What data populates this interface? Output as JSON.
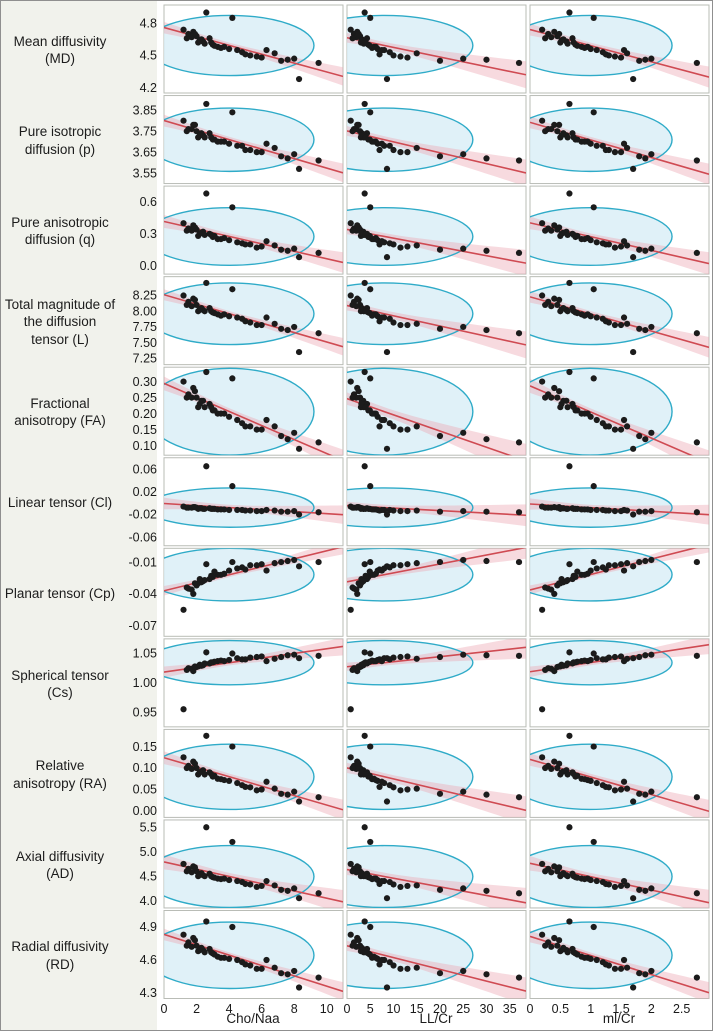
{
  "chart_data": {
    "type": "scatter",
    "description": "11x3 scatter-plot matrix of diffusion metrics vs MR spectroscopy ratios, each panel with red linear fit, pink confidence band and blue data ellipse",
    "style": {
      "point_color": "#1b1b1b",
      "line_color": "#cf4a52",
      "band_color": "#eba8b2",
      "ellipse_stroke": "#2fabc8",
      "ellipse_fill": "#d8edf6",
      "panel_border": "#b9bcb6",
      "background": "#f1f2ec"
    },
    "columns": [
      {
        "label": "Cho/Naa",
        "range": [
          0,
          11
        ],
        "ticks": [
          "0",
          "2",
          "4",
          "6",
          "8",
          "10"
        ],
        "x": [
          2.1,
          4.5,
          1.5,
          6.0,
          2.8,
          3.3,
          1.8,
          5.3,
          2.4,
          7.2,
          2.0,
          4.0,
          1.2,
          6.8,
          3.0,
          8.0,
          2.3,
          2.6,
          3.7,
          9.5,
          1.7,
          4.8,
          2.5,
          5.7,
          1.9,
          3.5,
          2.2,
          7.6,
          3.1,
          8.3,
          1.4,
          5.0,
          2.9,
          4.2,
          6.3
        ]
      },
      {
        "label": "LL/Cr",
        "range": [
          0,
          38.5
        ],
        "ticks": [
          "0",
          "5",
          "10",
          "15",
          "20",
          "25",
          "30",
          "35"
        ],
        "x": [
          3.0,
          8.0,
          1.5,
          13.0,
          4.3,
          5.8,
          2.2,
          10.0,
          3.5,
          20.0,
          2.8,
          6.6,
          0.8,
          15.0,
          4.6,
          25.0,
          3.2,
          3.8,
          6.2,
          37.0,
          2.0,
          9.2,
          3.6,
          11.5,
          2.5,
          5.4,
          3.1,
          30.0,
          4.9,
          8.6,
          1.2,
          7.0,
          4.0,
          5.0,
          7.5
        ]
      },
      {
        "label": "ml/Cr",
        "range": [
          0,
          2.95
        ],
        "ticks": [
          "0",
          "0.5",
          "1",
          "1.5",
          "2",
          "2.5"
        ],
        "x": [
          0.5,
          1.1,
          0.3,
          1.5,
          0.7,
          0.85,
          0.4,
          1.3,
          0.6,
          1.8,
          0.45,
          1.0,
          0.2,
          1.6,
          0.75,
          2.0,
          0.55,
          0.65,
          0.95,
          2.75,
          0.35,
          1.2,
          0.62,
          1.4,
          0.48,
          0.9,
          0.52,
          1.9,
          0.78,
          1.7,
          0.25,
          1.25,
          0.72,
          1.05,
          1.55
        ]
      }
    ],
    "rows": [
      {
        "label": "Mean diffusivity (MD)",
        "range": [
          4.15,
          4.97
        ],
        "ticks": [
          "4.2",
          "4.5",
          "4.8"
        ],
        "y": [
          4.62,
          4.55,
          4.7,
          4.48,
          4.66,
          4.58,
          4.72,
          4.5,
          4.63,
          4.45,
          4.68,
          4.56,
          4.74,
          4.52,
          4.6,
          4.47,
          4.65,
          4.9,
          4.58,
          4.43,
          4.67,
          4.53,
          4.61,
          4.49,
          4.7,
          4.57,
          4.64,
          4.46,
          4.59,
          4.28,
          4.66,
          4.51,
          4.62,
          4.85,
          4.55
        ]
      },
      {
        "label": "Pure isotropic diffusion (p)",
        "range": [
          3.5,
          3.92
        ],
        "ticks": [
          "3.55",
          "3.65",
          "3.75",
          "3.85"
        ],
        "y": [
          3.72,
          3.68,
          3.76,
          3.65,
          3.74,
          3.7,
          3.78,
          3.66,
          3.73,
          3.63,
          3.75,
          3.69,
          3.8,
          3.67,
          3.71,
          3.64,
          3.74,
          3.88,
          3.7,
          3.61,
          3.76,
          3.68,
          3.72,
          3.65,
          3.78,
          3.7,
          3.73,
          3.62,
          3.71,
          3.57,
          3.75,
          3.66,
          3.72,
          3.84,
          3.69
        ]
      },
      {
        "label": "Pure anisotropic diffusion (q)",
        "range": [
          -0.08,
          0.75
        ],
        "ticks": [
          "0.0",
          "0.3",
          "0.6"
        ],
        "y": [
          0.28,
          0.22,
          0.35,
          0.18,
          0.3,
          0.25,
          0.38,
          0.2,
          0.32,
          0.15,
          0.34,
          0.24,
          0.4,
          0.19,
          0.27,
          0.16,
          0.31,
          0.68,
          0.26,
          0.12,
          0.33,
          0.21,
          0.29,
          0.17,
          0.36,
          0.25,
          0.3,
          0.14,
          0.28,
          0.08,
          0.33,
          0.2,
          0.29,
          0.55,
          0.23
        ]
      },
      {
        "label": "Total magnitude of the diffusion tensor (L)",
        "range": [
          7.15,
          8.55
        ],
        "ticks": [
          "7.25",
          "7.50",
          "7.75",
          "8.00",
          "8.25"
        ],
        "y": [
          8.0,
          7.9,
          8.15,
          7.78,
          8.05,
          7.95,
          8.2,
          7.82,
          8.02,
          7.72,
          8.1,
          7.92,
          8.25,
          7.8,
          7.98,
          7.75,
          8.05,
          8.45,
          7.95,
          7.65,
          8.08,
          7.88,
          8.0,
          7.78,
          8.18,
          7.93,
          8.03,
          7.7,
          7.97,
          7.35,
          8.1,
          7.84,
          8.0,
          8.35,
          7.9
        ]
      },
      {
        "label": "Fractional anisotropy (FA)",
        "range": [
          0.07,
          0.345
        ],
        "ticks": [
          "0.10",
          "0.15",
          "0.20",
          "0.25",
          "0.30"
        ],
        "y": [
          0.22,
          0.18,
          0.26,
          0.15,
          0.23,
          0.2,
          0.28,
          0.16,
          0.24,
          0.13,
          0.25,
          0.19,
          0.3,
          0.16,
          0.21,
          0.14,
          0.24,
          0.33,
          0.2,
          0.11,
          0.25,
          0.17,
          0.22,
          0.15,
          0.27,
          0.2,
          0.23,
          0.12,
          0.21,
          0.09,
          0.25,
          0.16,
          0.22,
          0.31,
          0.18
        ]
      },
      {
        "label": "Linear tensor (Cl)",
        "range": [
          -0.075,
          0.08
        ],
        "ticks": [
          "-0.06",
          "-0.02",
          "0.02",
          "0.06"
        ],
        "y": [
          -0.01,
          -0.012,
          -0.008,
          -0.014,
          -0.009,
          -0.011,
          -0.007,
          -0.013,
          -0.01,
          -0.015,
          -0.008,
          -0.012,
          -0.006,
          -0.013,
          -0.01,
          -0.014,
          -0.009,
          0.065,
          -0.011,
          -0.016,
          -0.008,
          -0.012,
          -0.01,
          -0.014,
          -0.007,
          -0.011,
          -0.009,
          -0.015,
          -0.01,
          -0.02,
          -0.008,
          -0.013,
          -0.01,
          0.03,
          -0.012
        ]
      },
      {
        "label": "Planar tensor (Cp)",
        "range": [
          -0.08,
          0.003
        ],
        "ticks": [
          "-0.07",
          "-0.04",
          "-0.01"
        ],
        "y": [
          -0.03,
          -0.016,
          -0.035,
          -0.012,
          -0.026,
          -0.022,
          -0.04,
          -0.013,
          -0.028,
          -0.01,
          -0.032,
          -0.018,
          -0.055,
          -0.011,
          -0.024,
          -0.008,
          -0.029,
          -0.012,
          -0.021,
          -0.01,
          -0.036,
          -0.015,
          -0.027,
          -0.013,
          -0.03,
          -0.022,
          -0.026,
          -0.009,
          -0.019,
          -0.014,
          -0.034,
          -0.017,
          -0.023,
          -0.01,
          -0.018
        ]
      },
      {
        "label": "Spherical tensor (Cs)",
        "range": [
          0.925,
          1.075
        ],
        "ticks": [
          "0.95",
          "1.00",
          "1.05"
        ],
        "y": [
          1.028,
          1.042,
          1.025,
          1.045,
          1.033,
          1.037,
          1.02,
          1.043,
          1.03,
          1.044,
          1.027,
          1.039,
          0.955,
          1.041,
          1.035,
          1.048,
          1.029,
          1.052,
          1.037,
          1.046,
          1.024,
          1.04,
          1.033,
          1.044,
          1.028,
          1.038,
          1.031,
          1.047,
          1.036,
          1.042,
          1.022,
          1.04,
          1.035,
          1.05,
          1.037
        ]
      },
      {
        "label": "Relative anisotropy (RA)",
        "range": [
          -0.015,
          0.19
        ],
        "ticks": [
          "0.00",
          "0.05",
          "0.10",
          "0.15"
        ],
        "y": [
          0.085,
          0.065,
          0.105,
          0.05,
          0.09,
          0.075,
          0.115,
          0.055,
          0.095,
          0.04,
          0.1,
          0.07,
          0.125,
          0.052,
          0.08,
          0.045,
          0.092,
          0.175,
          0.072,
          0.032,
          0.098,
          0.06,
          0.085,
          0.048,
          0.11,
          0.074,
          0.09,
          0.038,
          0.082,
          0.022,
          0.1,
          0.056,
          0.086,
          0.15,
          0.068
        ]
      },
      {
        "label": "Axial diffusivity (AD)",
        "range": [
          3.85,
          5.65
        ],
        "ticks": [
          "4.0",
          "4.5",
          "5.0",
          "5.5"
        ],
        "y": [
          4.5,
          4.4,
          4.65,
          4.3,
          4.55,
          4.45,
          4.7,
          4.33,
          4.52,
          4.22,
          4.6,
          4.42,
          4.75,
          4.31,
          4.48,
          4.25,
          4.56,
          5.5,
          4.45,
          4.15,
          4.58,
          4.38,
          4.5,
          4.28,
          4.68,
          4.44,
          4.53,
          4.2,
          4.47,
          4.05,
          4.6,
          4.34,
          4.5,
          5.2,
          4.4
        ]
      },
      {
        "label": "Radial diffusivity (RD)",
        "range": [
          4.25,
          5.05
        ],
        "ticks": [
          "4.3",
          "4.6",
          "4.9"
        ],
        "y": [
          4.68,
          4.6,
          4.76,
          4.52,
          4.7,
          4.63,
          4.8,
          4.55,
          4.69,
          4.48,
          4.73,
          4.61,
          4.83,
          4.53,
          4.66,
          4.5,
          4.71,
          4.95,
          4.62,
          4.44,
          4.72,
          4.58,
          4.67,
          4.52,
          4.78,
          4.62,
          4.69,
          4.47,
          4.65,
          4.35,
          4.73,
          4.56,
          4.67,
          4.9,
          4.6
        ]
      }
    ]
  }
}
